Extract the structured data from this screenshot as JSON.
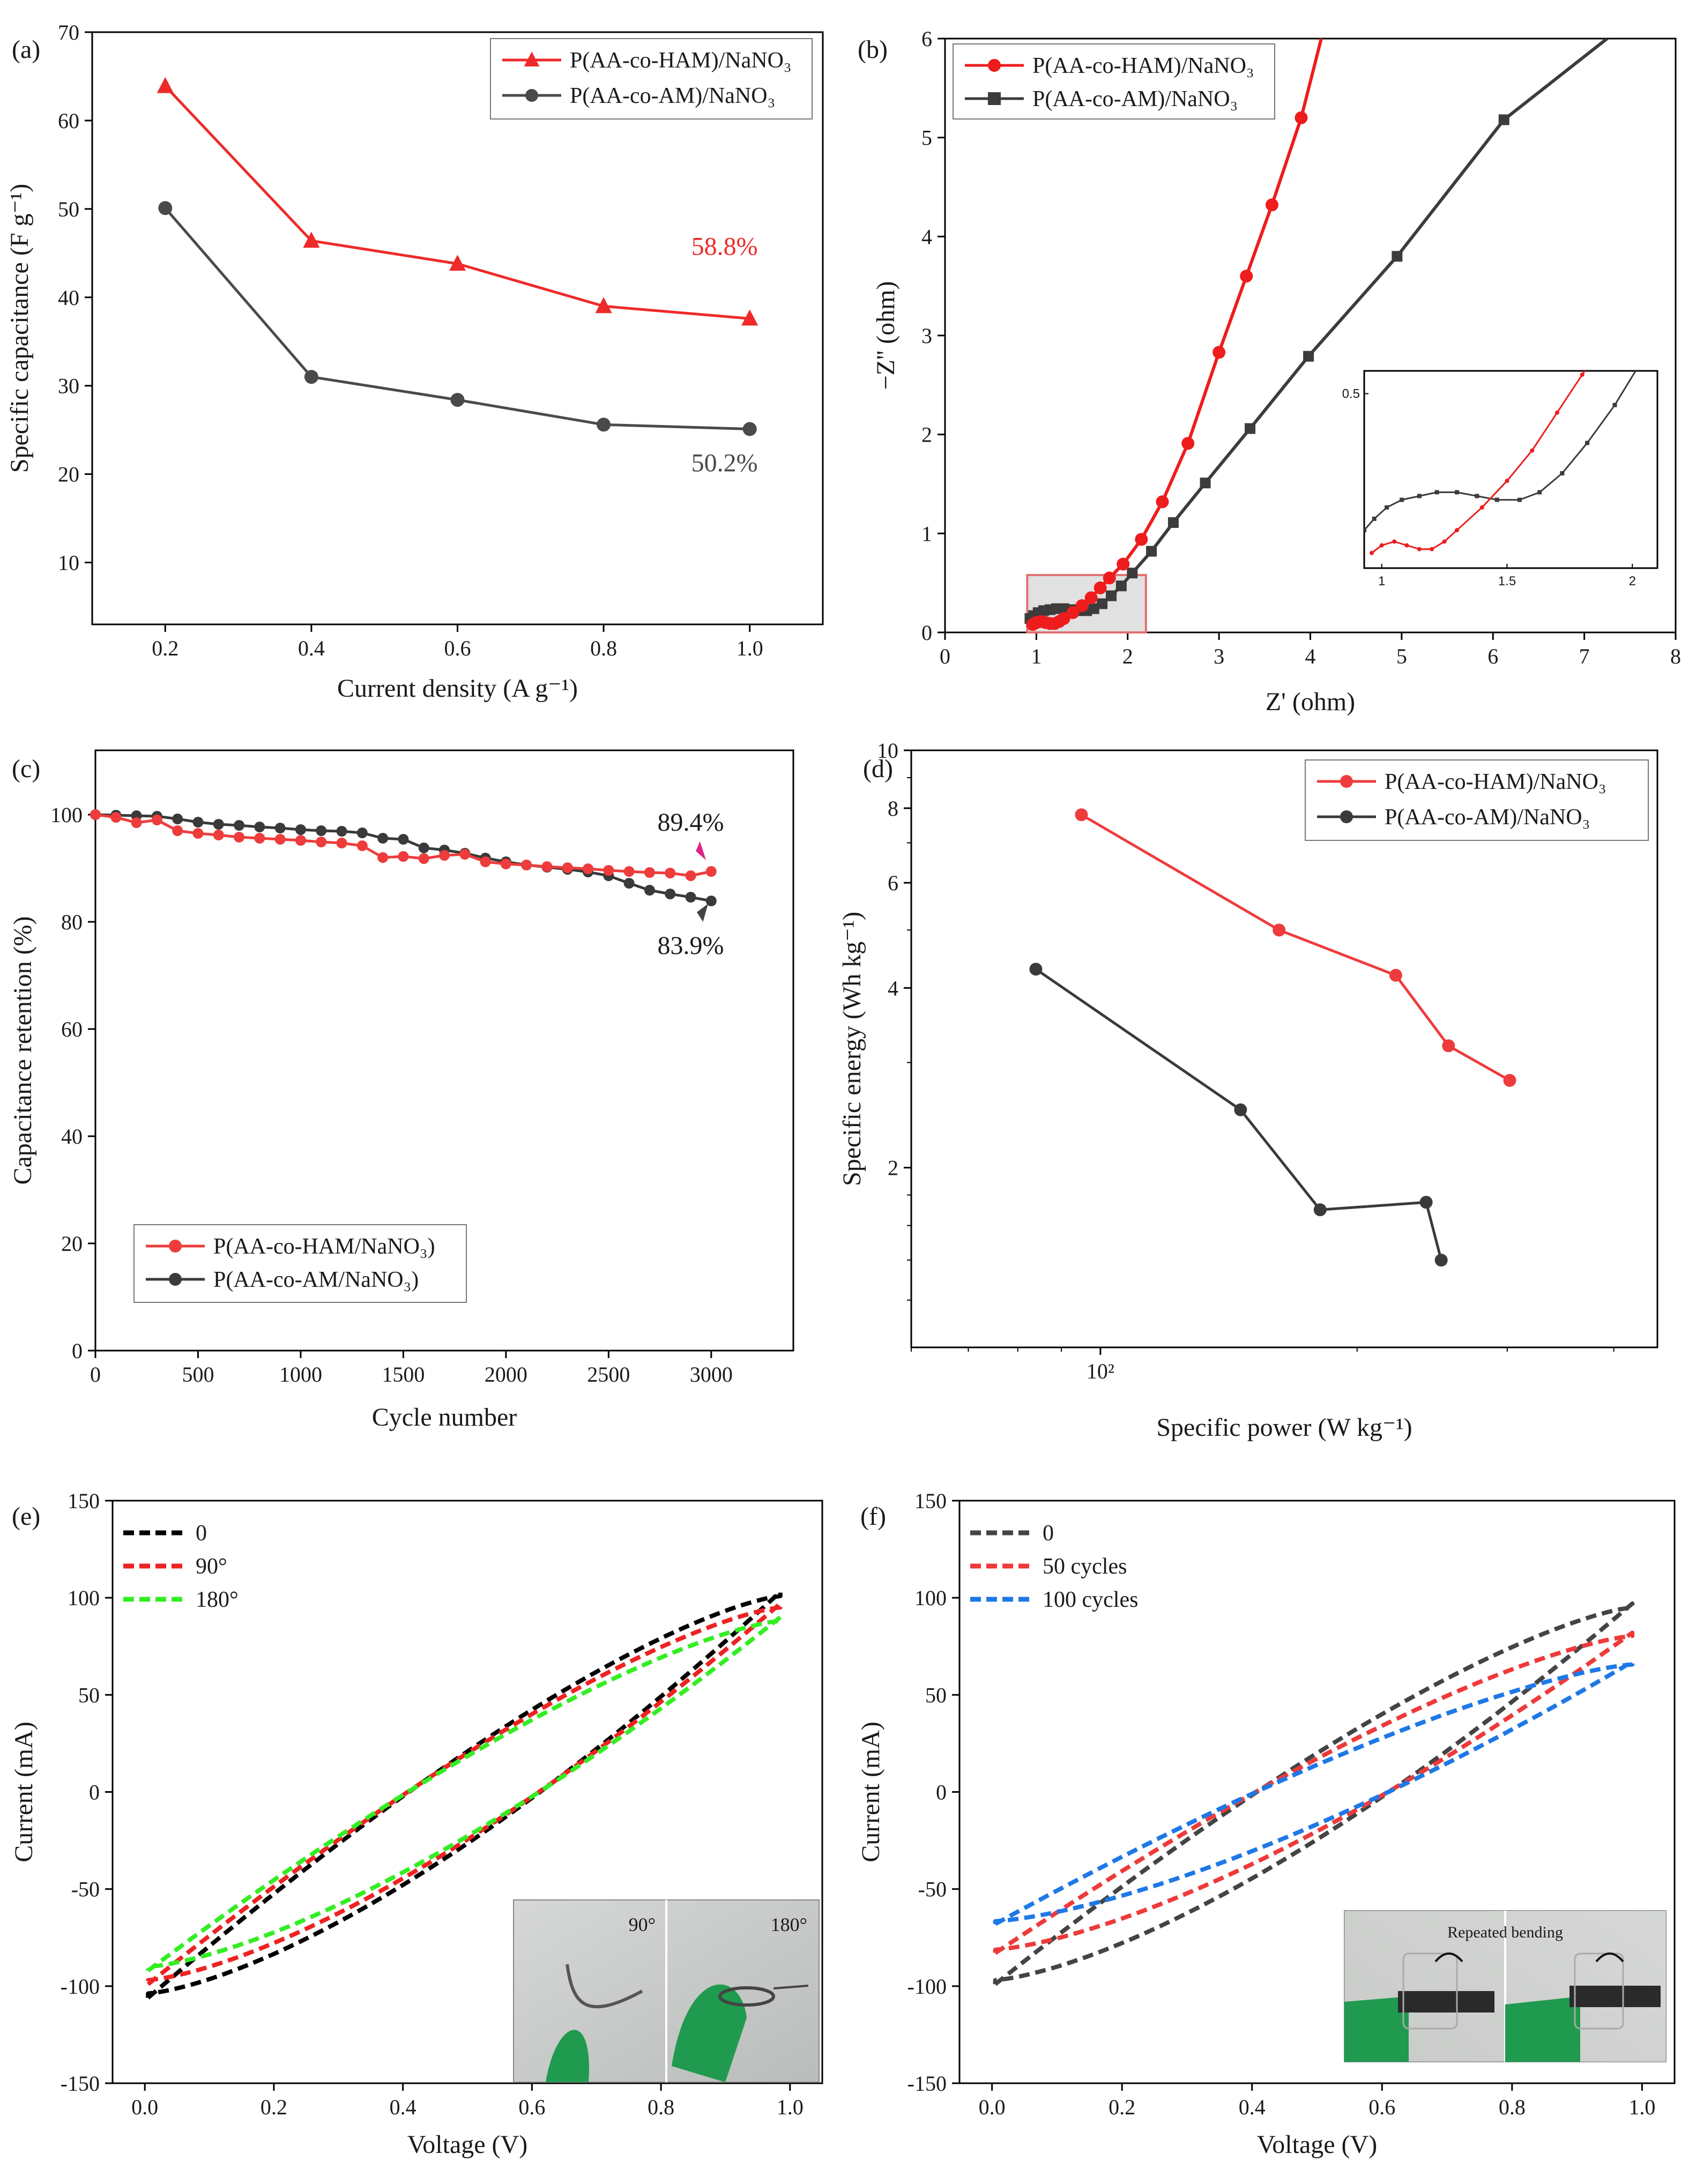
{
  "figure": {
    "colors": {
      "red": "#ee2a2a",
      "dark": "#3c3c3c",
      "black": "#000000",
      "green": "#22ee22",
      "blue": "#1e78e6",
      "frame": "#000000"
    }
  },
  "chart_data": [
    {
      "id": "a",
      "panel_label": "(a)",
      "type": "line",
      "xlabel": "Current density (A g⁻¹)",
      "ylabel": "Specific capacitance (F g⁻¹)",
      "xlim": [
        0.1,
        1.1
      ],
      "ylim": [
        3,
        70
      ],
      "xticks": [
        0.2,
        0.4,
        0.6,
        0.8,
        1.0
      ],
      "xtick_labels": [
        "0.2",
        "0.4",
        "0.6",
        "0.8",
        "1.0"
      ],
      "yticks": [
        10,
        20,
        30,
        40,
        50,
        60,
        70
      ],
      "ytick_labels": [
        "10",
        "20",
        "30",
        "40",
        "50",
        "60",
        "70"
      ],
      "legend_position": "top-right",
      "series": [
        {
          "name": "P(AA-co-HAM)/NaNO₃",
          "color": "#ee2a2a",
          "marker": "triangle",
          "x": [
            0.2,
            0.4,
            0.6,
            0.8,
            1.0
          ],
          "y": [
            63.9,
            46.4,
            43.8,
            39.0,
            37.6
          ]
        },
        {
          "name": "P(AA-co-AM)/NaNO₃",
          "color": "#4a4a4a",
          "marker": "circle",
          "x": [
            0.2,
            0.4,
            0.6,
            0.8,
            1.0
          ],
          "y": [
            50.1,
            31.0,
            28.4,
            25.6,
            25.1
          ]
        }
      ],
      "annotations": [
        {
          "text": "58.8%",
          "x": 0.92,
          "y": 44.8,
          "color": "#ee2a2a"
        },
        {
          "text": "50.2%",
          "x": 0.92,
          "y": 20.3,
          "color": "#4a4a4a"
        }
      ]
    },
    {
      "id": "b",
      "panel_label": "(b)",
      "type": "line",
      "xlabel": "Z' (ohm)",
      "ylabel": "−Z'' (ohm)",
      "xlim": [
        0,
        8
      ],
      "ylim": [
        0,
        6
      ],
      "xticks": [
        0,
        1,
        2,
        3,
        4,
        5,
        6,
        7,
        8
      ],
      "xtick_labels": [
        "0",
        "1",
        "2",
        "3",
        "4",
        "5",
        "6",
        "7",
        "8"
      ],
      "yticks": [
        0,
        1,
        2,
        3,
        4,
        5,
        6
      ],
      "ytick_labels": [
        "0",
        "1",
        "2",
        "3",
        "4",
        "5",
        "6"
      ],
      "legend_position": "top-left",
      "series": [
        {
          "name": "P(AA-co-HAM)/NaNO₃",
          "color": "#ee1c1c",
          "marker": "circle",
          "x": [
            0.96,
            1.0,
            1.05,
            1.1,
            1.15,
            1.2,
            1.25,
            1.3,
            1.4,
            1.5,
            1.6,
            1.7,
            1.8,
            1.95,
            2.15,
            2.38,
            2.66,
            3.0,
            3.3,
            3.58,
            3.9,
            4.12
          ],
          "y": [
            0.08,
            0.1,
            0.11,
            0.1,
            0.09,
            0.09,
            0.11,
            0.14,
            0.2,
            0.27,
            0.35,
            0.45,
            0.55,
            0.69,
            0.94,
            1.32,
            1.91,
            2.83,
            3.6,
            4.32,
            5.2,
            6.0
          ]
        },
        {
          "name": "P(AA-co-AM)/NaNO₃",
          "color": "#3c3c3c",
          "marker": "square",
          "x": [
            0.93,
            0.97,
            1.02,
            1.08,
            1.15,
            1.22,
            1.3,
            1.38,
            1.46,
            1.55,
            1.63,
            1.72,
            1.82,
            1.93,
            2.05,
            2.26,
            2.5,
            2.85,
            3.34,
            3.98,
            4.95,
            6.12,
            7.25
          ],
          "y": [
            0.14,
            0.17,
            0.2,
            0.22,
            0.23,
            0.24,
            0.24,
            0.23,
            0.22,
            0.22,
            0.24,
            0.29,
            0.37,
            0.47,
            0.6,
            0.82,
            1.11,
            1.51,
            2.06,
            2.79,
            3.8,
            5.18,
            6.0
          ]
        }
      ],
      "inset": {
        "xlim": [
          0.93,
          2.1
        ],
        "ylim": [
          0.04,
          0.56
        ],
        "xticks": [
          1,
          1.5,
          2
        ],
        "xtick_labels": [
          "1",
          "1.5",
          "2"
        ],
        "yticks": [
          0.5
        ],
        "ytick_labels": [
          "0.5"
        ],
        "zoom_region": {
          "x": [
            0.9,
            2.2
          ],
          "y": [
            0,
            0.58
          ]
        }
      }
    },
    {
      "id": "c",
      "panel_label": "(c)",
      "type": "line",
      "xlabel": "Cycle number",
      "ylabel": "Capacitance retention (%)",
      "xlim": [
        0,
        3400
      ],
      "ylim": [
        0,
        112
      ],
      "xticks": [
        0,
        500,
        1000,
        1500,
        2000,
        2500,
        3000
      ],
      "xtick_labels": [
        "0",
        "500",
        "1000",
        "1500",
        "2000",
        "2500",
        "3000"
      ],
      "yticks": [
        0,
        20,
        40,
        60,
        80,
        100
      ],
      "ytick_labels": [
        "0",
        "20",
        "40",
        "60",
        "80",
        "100"
      ],
      "legend_position": "bottom-left",
      "series": [
        {
          "name": "P(AA-co-HAM/NaNO₃)",
          "color": "#ee3c3c",
          "marker": "circle",
          "x": [
            0,
            100,
            200,
            300,
            400,
            500,
            600,
            700,
            800,
            900,
            1000,
            1100,
            1200,
            1300,
            1400,
            1500,
            1600,
            1700,
            1800,
            1900,
            2000,
            2100,
            2200,
            2300,
            2400,
            2500,
            2600,
            2700,
            2800,
            2900,
            3000
          ],
          "y": [
            100,
            99.5,
            98.5,
            99,
            97,
            96.5,
            96.2,
            95.8,
            95.6,
            95.4,
            95.2,
            94.9,
            94.7,
            94.2,
            92,
            92.2,
            91.8,
            92.4,
            92.6,
            91.2,
            90.8,
            90.6,
            90.3,
            90.1,
            89.9,
            89.6,
            89.4,
            89.2,
            89.1,
            88.6,
            89.4
          ]
        },
        {
          "name": "P(AA-co-AM/NaNO₃)",
          "color": "#3a3a3a",
          "marker": "circle",
          "x": [
            0,
            100,
            200,
            300,
            400,
            500,
            600,
            700,
            800,
            900,
            1000,
            1100,
            1200,
            1300,
            1400,
            1500,
            1600,
            1700,
            1800,
            1900,
            2000,
            2100,
            2200,
            2300,
            2400,
            2500,
            2600,
            2700,
            2800,
            2900,
            3000
          ],
          "y": [
            100,
            99.9,
            99.8,
            99.7,
            99.2,
            98.6,
            98.2,
            98.0,
            97.7,
            97.5,
            97.2,
            97.0,
            96.9,
            96.6,
            95.6,
            95.4,
            93.8,
            93.4,
            92.8,
            91.9,
            91.2,
            90.6,
            90.2,
            89.8,
            89.3,
            88.6,
            87.2,
            85.9,
            85.2,
            84.6,
            83.9
          ]
        }
      ],
      "annotations": [
        {
          "text": "89.4%",
          "x": 2900,
          "y": 97
        },
        {
          "text": "83.9%",
          "x": 2900,
          "y": 76
        }
      ]
    },
    {
      "id": "d",
      "panel_label": "(d)",
      "type": "line",
      "xlabel": "Specific power (W kg⁻¹)",
      "ylabel": "Specific energy (Wh kg⁻¹)",
      "xscale": "log",
      "yscale": "log",
      "xlim": [
        60,
        450
      ],
      "ylim": [
        1.0,
        10
      ],
      "xticks": [
        100
      ],
      "xtick_labels": [
        "10²"
      ],
      "yticks": [
        2,
        4,
        6,
        8,
        10
      ],
      "ytick_labels": [
        "2",
        "4",
        "6",
        "8",
        "10"
      ],
      "legend_position": "top-right",
      "series": [
        {
          "name": "P(AA-co-HAM)/NaNO₃",
          "color": "#ee3c3c",
          "marker": "circle",
          "x": [
            95,
            162,
            222,
            256,
            302
          ],
          "y": [
            7.8,
            5.0,
            4.2,
            3.2,
            2.8
          ]
        },
        {
          "name": "P(AA-co-AM)/NaNO₃",
          "color": "#3a3a3a",
          "marker": "circle",
          "x": [
            84,
            146,
            181,
            241,
            251
          ],
          "y": [
            4.3,
            2.5,
            1.7,
            1.75,
            1.4
          ]
        }
      ]
    },
    {
      "id": "e",
      "panel_label": "(e)",
      "type": "line",
      "xlabel": "Voltage (V)",
      "ylabel": "Current (mA)",
      "xlim": [
        -0.05,
        1.05
      ],
      "ylim": [
        -150,
        150
      ],
      "xticks": [
        0.0,
        0.2,
        0.4,
        0.6,
        0.8,
        1.0
      ],
      "xtick_labels": [
        "0.0",
        "0.2",
        "0.4",
        "0.6",
        "0.8",
        "1.0"
      ],
      "yticks": [
        -150,
        -100,
        -50,
        0,
        50,
        100,
        150
      ],
      "ytick_labels": [
        "-150",
        "-100",
        "-50",
        "0",
        "50",
        "100",
        "150"
      ],
      "legend_position": "top-left",
      "series": [
        {
          "name": "0",
          "color": "#000000",
          "dash": true,
          "top_end": 103,
          "bottom_start": -106
        },
        {
          "name": "90°",
          "color": "#ee2222",
          "dash": true,
          "top_end": 97,
          "bottom_start": -99
        },
        {
          "name": "180°",
          "color": "#33ee22",
          "dash": true,
          "top_end": 90,
          "bottom_start": -92
        }
      ],
      "inset_photo_labels": [
        "90°",
        "180°"
      ]
    },
    {
      "id": "f",
      "panel_label": "(f)",
      "type": "line",
      "xlabel": "Voltage (V)",
      "ylabel": "Current (mA)",
      "xlim": [
        -0.05,
        1.05
      ],
      "ylim": [
        -150,
        150
      ],
      "xticks": [
        0.0,
        0.2,
        0.4,
        0.6,
        0.8,
        1.0
      ],
      "xtick_labels": [
        "0.0",
        "0.2",
        "0.4",
        "0.6",
        "0.8",
        "1.0"
      ],
      "yticks": [
        -150,
        -100,
        -50,
        0,
        50,
        100,
        150
      ],
      "ytick_labels": [
        "-150",
        "-100",
        "-50",
        "0",
        "50",
        "100",
        "150"
      ],
      "legend_position": "top-left",
      "series": [
        {
          "name": "0",
          "color": "#444444",
          "dash": true,
          "top_end": 97,
          "bottom_start": -99
        },
        {
          "name": "50 cycles",
          "color": "#ee3a3a",
          "dash": true,
          "top_end": 82,
          "bottom_start": -83
        },
        {
          "name": "100 cycles",
          "color": "#1e78e6",
          "dash": true,
          "top_end": 67,
          "bottom_start": -68
        }
      ],
      "inset_photo_labels": [
        "Repeated bending"
      ]
    }
  ]
}
